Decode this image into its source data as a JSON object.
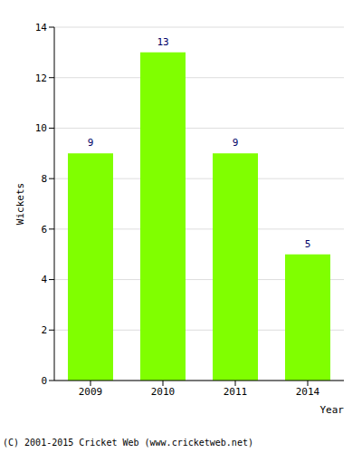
{
  "chart_data": {
    "type": "bar",
    "categories": [
      "2009",
      "2010",
      "2011",
      "2014"
    ],
    "values": [
      9,
      13,
      9,
      5
    ],
    "color": "#80ff00",
    "x_label": "Year",
    "y_label": "Wickets",
    "ylim": [
      0,
      14
    ],
    "yticks": [
      0,
      2,
      4,
      6,
      8,
      10,
      12,
      14
    ],
    "grid": true,
    "data_labels": true,
    "footer": "(C) 2001-2015 Cricket Web (www.cricketweb.net)"
  }
}
